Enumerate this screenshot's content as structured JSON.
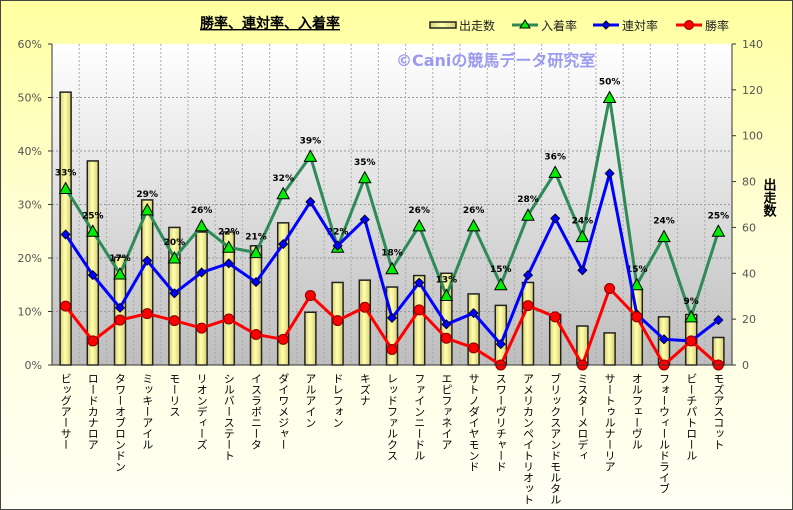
{
  "chart_data": {
    "type": "bar+line",
    "title": "勝率、連対率、入着率",
    "watermark": "©Caniの競馬データ研究室",
    "categories": [
      "ビッグアーサー",
      "ロードカナロア",
      "タワーオブロンドン",
      "ミッキーアイル",
      "モーリス",
      "リオンディーズ",
      "シルバーステート",
      "イスラボニータ",
      "ダイワメジャー",
      "アルアイン",
      "ドレフォン",
      "キズナ",
      "レッドファルクス",
      "ファインニードル",
      "エピファネイア",
      "サトノダイヤモンド",
      "スワーヴリチャード",
      "アメリカンペイトリオット",
      "ブリックスアンドモルタル",
      "ミスターメロディ",
      "サートゥルナーリア",
      "オルフェーヴル",
      "フォーウィールドライブ",
      "ビーチパトロール",
      "モズアスコット"
    ],
    "left_axis": {
      "ylim": [
        0,
        60
      ],
      "ticks": [
        "0%",
        "10%",
        "20%",
        "30%",
        "40%",
        "50%",
        "60%"
      ]
    },
    "right_axis": {
      "label": "出走数",
      "ylim": [
        0,
        140
      ],
      "ticks": [
        "0",
        "20",
        "40",
        "60",
        "80",
        "100",
        "120",
        "140"
      ]
    },
    "grid": true,
    "legend_position": "top-right",
    "series": [
      {
        "name": "出走数",
        "type": "bar",
        "axis": "right",
        "color": "#f5f08a",
        "values": [
          119,
          89,
          47,
          72,
          60,
          58,
          58,
          52,
          62,
          23,
          36,
          37,
          34,
          39,
          40,
          31,
          26,
          36,
          22,
          17,
          14,
          33,
          21,
          22,
          12
        ]
      },
      {
        "name": "入着率",
        "type": "line",
        "axis": "left",
        "color": "#2e8b57",
        "marker": "triangle",
        "marker_color": "#00ee00",
        "values": [
          33,
          25,
          17,
          29,
          20,
          26,
          22,
          21,
          32,
          39,
          22,
          35,
          18,
          26,
          13,
          26,
          15,
          28,
          36,
          24,
          50,
          15,
          24,
          9,
          25
        ],
        "labels": [
          "33%",
          "25%",
          "17%",
          "29%",
          "20%",
          "26%",
          "22%",
          "21%",
          "32%",
          "39%",
          "22%",
          "35%",
          "18%",
          "26%",
          "13%",
          "26%",
          "15%",
          "28%",
          "36%",
          "24%",
          "50%",
          "15%",
          "24%",
          "9%",
          "25%"
        ]
      },
      {
        "name": "連対率",
        "type": "line",
        "axis": "left",
        "color": "#0000ff",
        "marker": "diamond",
        "values": [
          24.4,
          16.8,
          10.7,
          19.5,
          13.4,
          17.3,
          19.0,
          15.5,
          22.6,
          30.5,
          22.3,
          27.2,
          8.8,
          15.4,
          7.6,
          9.7,
          3.9,
          16.8,
          27.4,
          17.7,
          35.8,
          9.5,
          4.8,
          4.5,
          8.4
        ]
      },
      {
        "name": "勝率",
        "type": "line",
        "axis": "left",
        "color": "#ff0000",
        "marker": "circle",
        "values": [
          11.0,
          4.5,
          8.4,
          9.6,
          8.3,
          6.9,
          8.6,
          5.7,
          4.8,
          13.0,
          8.3,
          10.8,
          2.9,
          10.3,
          5.0,
          3.2,
          0,
          11.1,
          9.0,
          0,
          14.3,
          9.0,
          0,
          4.5,
          0
        ]
      }
    ]
  }
}
